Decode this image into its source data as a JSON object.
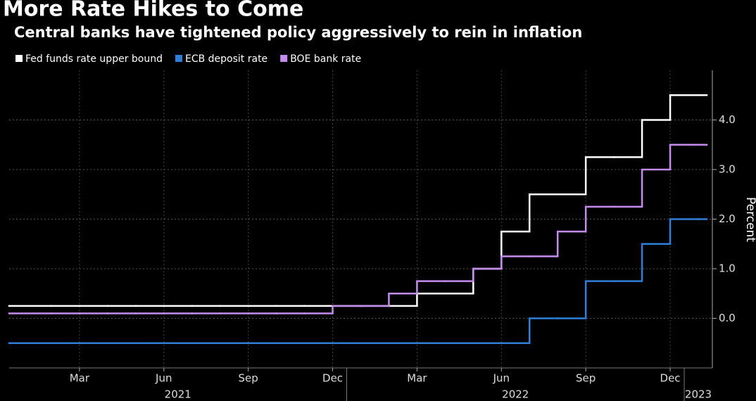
{
  "chart_data": {
    "type": "step",
    "title": "More Rate Hikes to Come",
    "subtitle": "Central banks have tightened policy aggressively to rein in inflation",
    "y_label": "Percent",
    "x": [
      "2021-01",
      "2021-02",
      "2021-03",
      "2021-04",
      "2021-05",
      "2021-06",
      "2021-07",
      "2021-08",
      "2021-09",
      "2021-10",
      "2021-11",
      "2021-12",
      "2022-01",
      "2022-02",
      "2022-03",
      "2022-04",
      "2022-05",
      "2022-06",
      "2022-07",
      "2022-08",
      "2022-09",
      "2022-10",
      "2022-11",
      "2022-12",
      "2023-01"
    ],
    "series": [
      {
        "name": "Fed funds rate upper bound",
        "color": "#ffffff",
        "values": [
          0.25,
          0.25,
          0.25,
          0.25,
          0.25,
          0.25,
          0.25,
          0.25,
          0.25,
          0.25,
          0.25,
          0.25,
          0.25,
          0.25,
          0.5,
          0.5,
          1.0,
          1.75,
          2.5,
          2.5,
          3.25,
          3.25,
          4.0,
          4.5,
          4.5
        ]
      },
      {
        "name": "ECB deposit rate",
        "color": "#2f7fd8",
        "values": [
          -0.5,
          -0.5,
          -0.5,
          -0.5,
          -0.5,
          -0.5,
          -0.5,
          -0.5,
          -0.5,
          -0.5,
          -0.5,
          -0.5,
          -0.5,
          -0.5,
          -0.5,
          -0.5,
          -0.5,
          -0.5,
          0.0,
          0.0,
          0.75,
          0.75,
          1.5,
          2.0,
          2.0
        ]
      },
      {
        "name": "BOE bank rate",
        "color": "#c58cf0",
        "values": [
          0.1,
          0.1,
          0.1,
          0.1,
          0.1,
          0.1,
          0.1,
          0.1,
          0.1,
          0.1,
          0.1,
          0.25,
          0.25,
          0.5,
          0.75,
          0.75,
          1.0,
          1.25,
          1.25,
          1.75,
          2.25,
          2.25,
          3.0,
          3.5,
          3.5
        ]
      }
    ],
    "xlim": [
      "2021-01",
      "2023-02"
    ],
    "xticks": [
      {
        "value": "2021-03",
        "label": "Mar"
      },
      {
        "value": "2021-06",
        "label": "Jun"
      },
      {
        "value": "2021-09",
        "label": "Sep"
      },
      {
        "value": "2021-12",
        "label": "Dec"
      },
      {
        "value": "2022-03",
        "label": "Mar"
      },
      {
        "value": "2022-06",
        "label": "Jun"
      },
      {
        "value": "2022-09",
        "label": "Sep"
      },
      {
        "value": "2022-12",
        "label": "Dec"
      }
    ],
    "years": [
      "2021",
      "2022",
      "2023"
    ],
    "ylim": [
      -1,
      5
    ],
    "yticks": [
      {
        "value": 0,
        "label": "0.0"
      },
      {
        "value": 1,
        "label": "1.0"
      },
      {
        "value": 2,
        "label": "2.0"
      },
      {
        "value": 3,
        "label": "3.0"
      },
      {
        "value": 4,
        "label": "4.0"
      }
    ],
    "grid": true,
    "legend": "top-left"
  }
}
